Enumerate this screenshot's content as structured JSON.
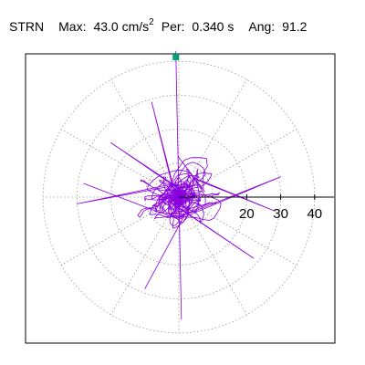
{
  "header": {
    "station": "STRN",
    "max_label": "Max:",
    "max_value": "43.0",
    "max_unit": "cm/s",
    "max_exp": "2",
    "per_label": "Per:",
    "per_value": "0.340 s",
    "ang_label": "Ang:",
    "ang_value": "91.2"
  },
  "chart_data": {
    "type": "scatter",
    "subtype": "polar particle-motion trace",
    "title": "STRN  Max: 43.0 cm/s2  Per: 0.340 s  Ang: 91.2",
    "radial_ticks": [
      "20",
      "30",
      "40"
    ],
    "radial_tick_values": [
      20,
      30,
      40
    ],
    "rings": [
      10,
      20,
      30,
      40
    ],
    "radial_range": [
      0,
      43.0
    ],
    "peak": {
      "amplitude": 43.0,
      "angle_deg": 91.2,
      "marker_color": "#00a070"
    },
    "grid": true,
    "trace_color": "#8800dd",
    "grid_color": "#999999"
  }
}
